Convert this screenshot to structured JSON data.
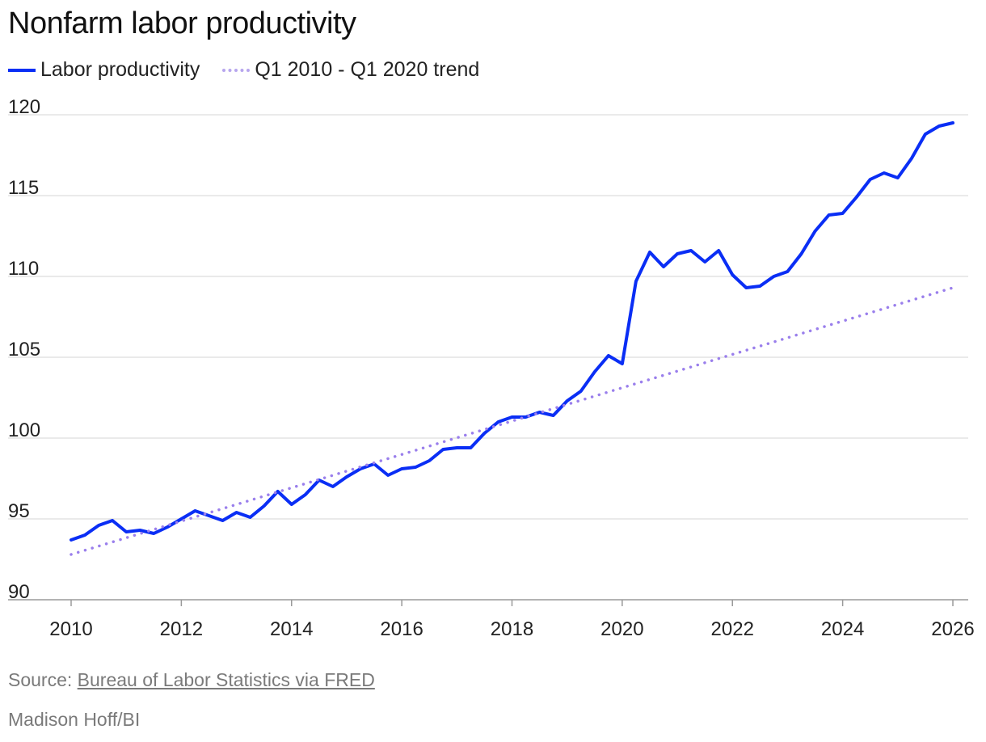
{
  "chart_data": {
    "type": "line",
    "title": "Nonfarm labor productivity",
    "legend": [
      "Labor productivity",
      "Q1 2010 - Q1 2020 trend"
    ],
    "legend_position": "top-left",
    "x_ticks": [
      "2010",
      "2012",
      "2014",
      "2016",
      "2018",
      "2020",
      "2022",
      "2024",
      "2026"
    ],
    "y_ticks": [
      "90",
      "95",
      "100",
      "105",
      "110",
      "115",
      "120"
    ],
    "xlim": [
      2010,
      2026
    ],
    "ylim": [
      90,
      120
    ],
    "grid": "horizontal",
    "series": [
      {
        "name": "Labor productivity",
        "color": "#0a2ef5",
        "style": "solid",
        "x": [
          2010.0,
          2010.25,
          2010.5,
          2010.75,
          2011.0,
          2011.25,
          2011.5,
          2011.75,
          2012.0,
          2012.25,
          2012.5,
          2012.75,
          2013.0,
          2013.25,
          2013.5,
          2013.75,
          2014.0,
          2014.25,
          2014.5,
          2014.75,
          2015.0,
          2015.25,
          2015.5,
          2015.75,
          2016.0,
          2016.25,
          2016.5,
          2016.75,
          2017.0,
          2017.25,
          2017.5,
          2017.75,
          2018.0,
          2018.25,
          2018.5,
          2018.75,
          2019.0,
          2019.25,
          2019.5,
          2019.75,
          2020.0,
          2020.25,
          2020.5,
          2020.75,
          2021.0,
          2021.25,
          2021.5,
          2021.75,
          2022.0,
          2022.25,
          2022.5,
          2022.75,
          2023.0,
          2023.25,
          2023.5,
          2023.75,
          2024.0,
          2024.25,
          2024.5,
          2024.75,
          2025.0,
          2025.25,
          2025.5,
          2025.75,
          2026.0
        ],
        "values": [
          93.7,
          94.0,
          94.6,
          94.9,
          94.2,
          94.3,
          94.1,
          94.5,
          95.0,
          95.5,
          95.2,
          94.9,
          95.4,
          95.1,
          95.8,
          96.7,
          95.9,
          96.5,
          97.4,
          97.0,
          97.6,
          98.1,
          98.4,
          97.7,
          98.1,
          98.2,
          98.6,
          99.3,
          99.4,
          99.4,
          100.3,
          101.0,
          101.3,
          101.3,
          101.6,
          101.4,
          102.3,
          102.9,
          104.1,
          105.1,
          104.6,
          109.7,
          111.5,
          110.6,
          111.4,
          111.6,
          110.9,
          111.6,
          110.1,
          109.3,
          109.4,
          110.0,
          110.3,
          111.4,
          112.8,
          113.8,
          113.9,
          114.9,
          116.0,
          116.4,
          116.1,
          117.3,
          118.8,
          119.3,
          119.5
        ]
      },
      {
        "name": "Q1 2010 - Q1 2020 trend",
        "color": "#9a7fec",
        "style": "dotted",
        "x": [
          2010.0,
          2026.0
        ],
        "values": [
          92.8,
          109.3
        ]
      }
    ]
  },
  "footer": {
    "source_prefix": "Source: ",
    "source_link": "Bureau of Labor Statistics via FRED",
    "credit": "Madison Hoff/BI"
  }
}
